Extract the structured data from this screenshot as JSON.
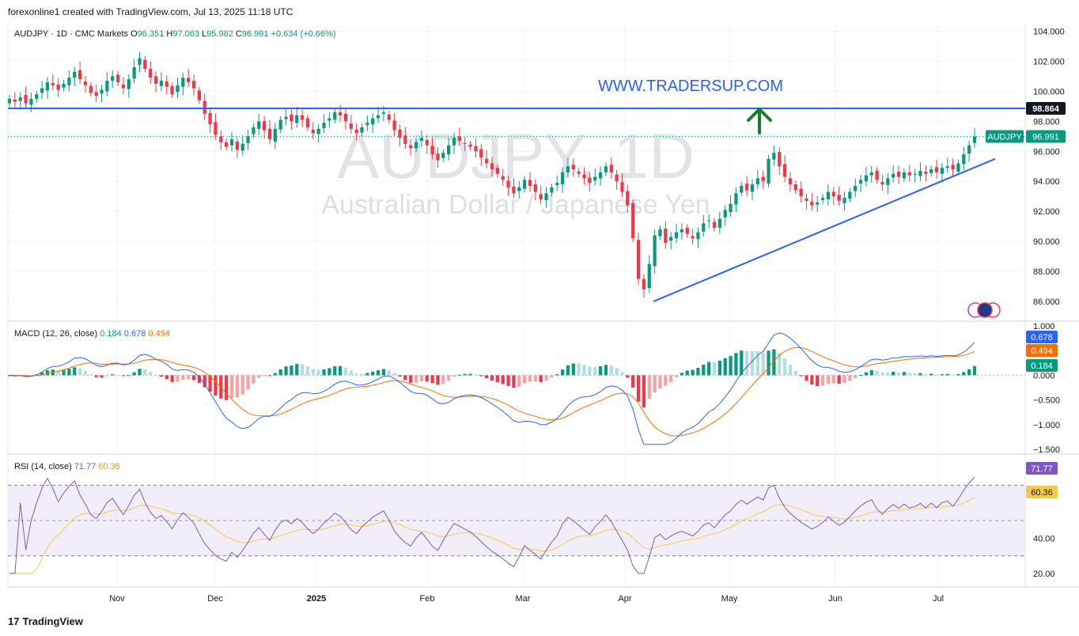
{
  "header": {
    "text": "forexonline1 created with TradingView.com, Jul 13, 2025 11:18 UTC"
  },
  "legend": {
    "symbol": "AUDJPY · 1D · CMC Markets",
    "o_label": "O",
    "o_val": "96.351",
    "h_label": "H",
    "h_val": "97.063",
    "l_label": "L",
    "l_val": "95.982",
    "c_label": "C",
    "c_val": "96.991",
    "change": "+0.634 (+0.66%)"
  },
  "watermark": {
    "ticker": "AUDJPY, 1D",
    "name": "Australian Dollar / Japanese Yen"
  },
  "annotation": {
    "url": "WWW.TRADERSUP.COM"
  },
  "footer": {
    "brand": "TradingView",
    "logo_text": "17"
  },
  "colors": {
    "up": "#089981",
    "down": "#f23645",
    "up_light": "#b2dfdb",
    "down_light": "#faa1a4",
    "hline": "#2962ff",
    "macd": "#2962ff",
    "signal": "#ff6d00",
    "rsi": "#7e57c2",
    "rsi_ma": "#f7c948"
  },
  "chart_data": [
    {
      "type": "candlestick",
      "title": "AUDJPY · 1D · CMC Markets",
      "x_ticks": [
        "Nov",
        "Dec",
        "2025",
        "Feb",
        "Mar",
        "Apr",
        "May",
        "Jun",
        "Jul"
      ],
      "y_ticks": [
        "104.000",
        "102.000",
        "100.000",
        "98.000",
        "96.000",
        "94.000",
        "92.000",
        "90.000",
        "88.000",
        "86.000"
      ],
      "ylim": [
        85.0,
        104.5
      ],
      "horizontal_line": {
        "value": 98.864,
        "label": "98.864"
      },
      "last_price": {
        "label": "AUDJPY",
        "value": "96.991"
      },
      "trendline": {
        "from": [
          "Apr 8",
          86.0
        ],
        "to": [
          "Jul 15",
          95.5
        ]
      },
      "closes": [
        99.5,
        99.3,
        99.6,
        99.2,
        99.5,
        99.8,
        100.2,
        100.6,
        100.4,
        100.1,
        100.5,
        100.9,
        101.3,
        100.8,
        100.4,
        99.9,
        99.7,
        100.1,
        100.7,
        101.0,
        100.6,
        100.2,
        100.8,
        101.6,
        102.2,
        101.5,
        100.9,
        100.5,
        100.7,
        100.3,
        99.8,
        100.4,
        100.9,
        100.6,
        100.2,
        99.4,
        98.5,
        97.8,
        97.1,
        96.6,
        96.3,
        96.8,
        96.1,
        96.5,
        97.0,
        97.6,
        98.0,
        97.4,
        96.8,
        97.5,
        98.1,
        98.3,
        98.0,
        98.4,
        98.1,
        97.6,
        97.2,
        97.5,
        97.9,
        98.2,
        98.6,
        98.4,
        98.0,
        97.5,
        97.2,
        97.6,
        97.9,
        98.2,
        98.4,
        98.6,
        98.1,
        97.4,
        96.9,
        96.5,
        96.2,
        96.6,
        96.9,
        96.4,
        95.8,
        95.4,
        95.9,
        96.4,
        96.9,
        96.7,
        96.5,
        96.3,
        96.0,
        95.6,
        95.2,
        94.8,
        94.5,
        94.1,
        93.6,
        93.2,
        93.6,
        94.1,
        93.7,
        93.3,
        92.8,
        93.2,
        93.6,
        93.9,
        94.6,
        95.0,
        94.8,
        94.5,
        94.2,
        93.9,
        94.3,
        94.6,
        95.0,
        94.6,
        94.0,
        93.3,
        92.4,
        90.2,
        87.5,
        86.8,
        88.5,
        90.4,
        90.8,
        89.9,
        90.3,
        90.6,
        90.8,
        90.5,
        90.2,
        90.6,
        91.2,
        91.4,
        90.9,
        91.5,
        92.1,
        92.5,
        93.2,
        93.7,
        93.4,
        93.8,
        94.2,
        94.0,
        95.5,
        95.9,
        95.0,
        94.3,
        93.8,
        93.4,
        93.0,
        92.7,
        92.4,
        92.6,
        92.9,
        93.3,
        93.0,
        92.7,
        92.9,
        93.3,
        93.7,
        94.1,
        94.4,
        94.6,
        94.1,
        93.8,
        94.2,
        94.5,
        94.3,
        94.6,
        94.4,
        94.5,
        94.7,
        94.5,
        94.8,
        94.6,
        94.9,
        95.0,
        94.8,
        95.2,
        95.8,
        96.4,
        96.99
      ]
    },
    {
      "type": "line",
      "title": "MACD (12, 26, close)",
      "values_label": [
        "0.184",
        "0.678",
        "0.494"
      ],
      "y_ticks": [
        "1.000",
        "0.500",
        "0.000",
        "-0.500",
        "-1.000",
        "-1.500"
      ],
      "ylim": [
        -1.5,
        1.0
      ],
      "series": [
        {
          "name": "MACD",
          "value": "0.678"
        },
        {
          "name": "Signal",
          "value": "0.494"
        },
        {
          "name": "Histogram",
          "value": "0.184"
        }
      ]
    },
    {
      "type": "line",
      "title": "RSI (14, close)",
      "values_label": [
        "71.77",
        "60.36"
      ],
      "y_ticks": [
        "40.00",
        "20.00"
      ],
      "ylim": [
        20,
        80
      ],
      "levels": [
        70,
        50,
        30
      ],
      "series": [
        {
          "name": "RSI",
          "value": "71.77"
        },
        {
          "name": "RSI-based MA",
          "value": "60.36"
        }
      ]
    }
  ]
}
